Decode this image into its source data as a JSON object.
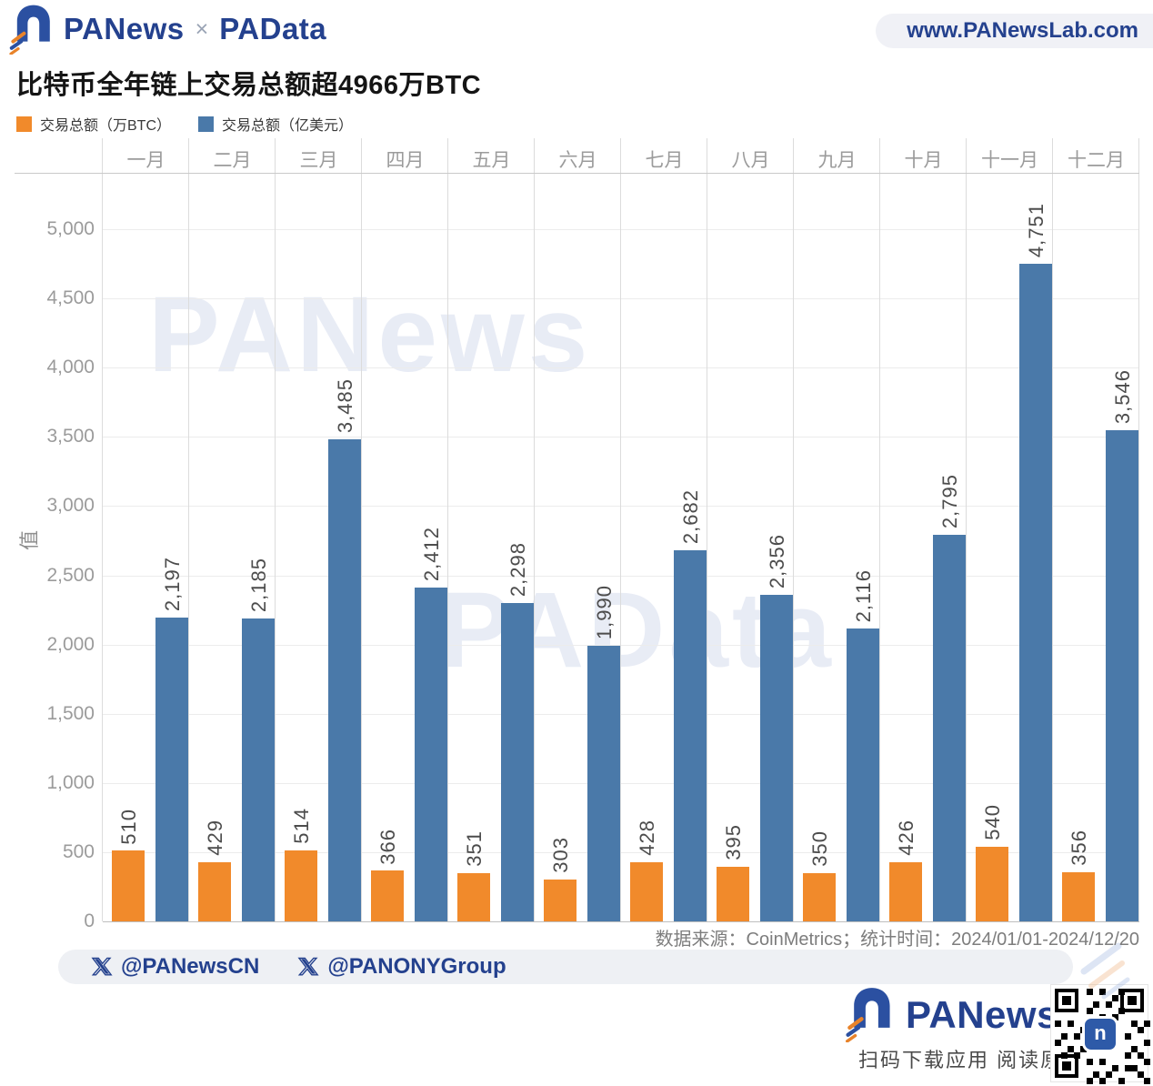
{
  "header": {
    "brand_primary": "PANews",
    "brand_separator": "×",
    "brand_secondary": "PAData",
    "website": "www.PANewsLab.com"
  },
  "title": "比特币全年链上交易总额超4966万BTC",
  "chart_data": {
    "type": "bar",
    "title": "比特币全年链上交易总额超4966万BTC",
    "categories": [
      "一月",
      "二月",
      "三月",
      "四月",
      "五月",
      "六月",
      "七月",
      "八月",
      "九月",
      "十月",
      "十一月",
      "十二月"
    ],
    "series": [
      {
        "name": "交易总额（万BTC）",
        "color": "#F18A2B",
        "values": [
          510,
          429,
          514,
          366,
          351,
          303,
          428,
          395,
          350,
          426,
          540,
          356
        ]
      },
      {
        "name": "交易总额（亿美元）",
        "color": "#4A79A9",
        "values": [
          2197,
          2185,
          3485,
          2412,
          2298,
          1990,
          2682,
          2356,
          2116,
          2795,
          4751,
          3546
        ]
      }
    ],
    "xlabel": "",
    "ylabel": "值",
    "ylim": [
      0,
      5000
    ],
    "ytick_step": 500,
    "grid": true,
    "legend_position": "top-left",
    "value_labels": "rotated-90"
  },
  "watermarks": [
    "PANews",
    "PAData"
  ],
  "footer": {
    "source_line": "数据来源：CoinMetrics；统计时间：2024/01/01-2024/12/20",
    "social": {
      "handles": [
        "@PANewsCN",
        "@PANONYGroup"
      ]
    },
    "brand_name": "PANews",
    "tagline": "扫码下载应用 阅读原文",
    "qr_logo_letter": "n"
  }
}
